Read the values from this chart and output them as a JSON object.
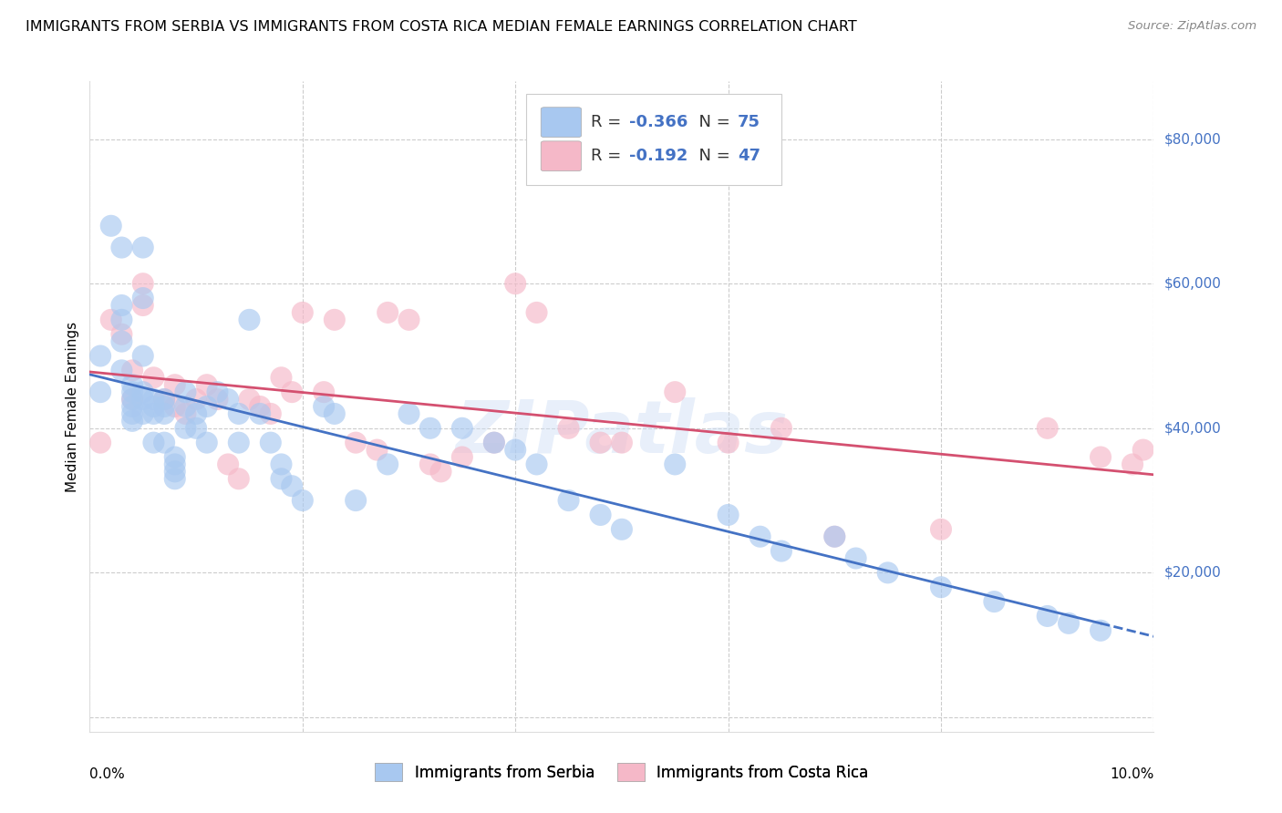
{
  "title": "IMMIGRANTS FROM SERBIA VS IMMIGRANTS FROM COSTA RICA MEDIAN FEMALE EARNINGS CORRELATION CHART",
  "source": "Source: ZipAtlas.com",
  "ylabel": "Median Female Earnings",
  "watermark": "ZIPatlas",
  "serbia_R": -0.366,
  "serbia_N": 75,
  "costarica_R": -0.192,
  "costarica_N": 47,
  "serbia_color": "#a8c8f0",
  "costarica_color": "#f5b8c8",
  "serbia_line_color": "#4472c4",
  "costarica_line_color": "#d45070",
  "background_color": "#ffffff",
  "grid_color": "#cccccc",
  "yticks": [
    0,
    20000,
    40000,
    60000,
    80000
  ],
  "ytick_labels": [
    "",
    "$20,000",
    "$40,000",
    "$60,000",
    "$80,000"
  ],
  "xlim": [
    0.0,
    0.1
  ],
  "ylim": [
    -2000,
    88000
  ],
  "serbia_x": [
    0.001,
    0.001,
    0.002,
    0.003,
    0.003,
    0.003,
    0.003,
    0.003,
    0.004,
    0.004,
    0.004,
    0.004,
    0.004,
    0.004,
    0.005,
    0.005,
    0.005,
    0.005,
    0.005,
    0.005,
    0.006,
    0.006,
    0.006,
    0.006,
    0.007,
    0.007,
    0.007,
    0.007,
    0.008,
    0.008,
    0.008,
    0.008,
    0.009,
    0.009,
    0.009,
    0.01,
    0.01,
    0.011,
    0.011,
    0.012,
    0.013,
    0.014,
    0.014,
    0.015,
    0.016,
    0.017,
    0.018,
    0.018,
    0.019,
    0.02,
    0.022,
    0.023,
    0.025,
    0.028,
    0.03,
    0.032,
    0.035,
    0.038,
    0.04,
    0.042,
    0.045,
    0.048,
    0.05,
    0.055,
    0.06,
    0.063,
    0.065,
    0.07,
    0.072,
    0.075,
    0.08,
    0.085,
    0.09,
    0.092,
    0.095
  ],
  "serbia_y": [
    45000,
    50000,
    68000,
    65000,
    57000,
    55000,
    52000,
    48000,
    46000,
    45000,
    44000,
    43000,
    42000,
    41000,
    65000,
    58000,
    50000,
    45000,
    44000,
    42000,
    44000,
    43000,
    42000,
    38000,
    44000,
    43000,
    42000,
    38000,
    36000,
    35000,
    34000,
    33000,
    45000,
    43000,
    40000,
    42000,
    40000,
    43000,
    38000,
    45000,
    44000,
    42000,
    38000,
    55000,
    42000,
    38000,
    35000,
    33000,
    32000,
    30000,
    43000,
    42000,
    30000,
    35000,
    42000,
    40000,
    40000,
    38000,
    37000,
    35000,
    30000,
    28000,
    26000,
    35000,
    28000,
    25000,
    23000,
    25000,
    22000,
    20000,
    18000,
    16000,
    14000,
    13000,
    12000
  ],
  "costarica_x": [
    0.001,
    0.002,
    0.003,
    0.004,
    0.004,
    0.005,
    0.005,
    0.006,
    0.007,
    0.008,
    0.008,
    0.009,
    0.01,
    0.011,
    0.012,
    0.013,
    0.014,
    0.015,
    0.016,
    0.017,
    0.018,
    0.019,
    0.02,
    0.022,
    0.023,
    0.025,
    0.027,
    0.028,
    0.03,
    0.032,
    0.033,
    0.035,
    0.038,
    0.04,
    0.042,
    0.045,
    0.048,
    0.05,
    0.055,
    0.06,
    0.065,
    0.07,
    0.08,
    0.09,
    0.095,
    0.098,
    0.099
  ],
  "costarica_y": [
    38000,
    55000,
    53000,
    48000,
    44000,
    60000,
    57000,
    47000,
    44000,
    46000,
    43000,
    42000,
    44000,
    46000,
    44000,
    35000,
    33000,
    44000,
    43000,
    42000,
    47000,
    45000,
    56000,
    45000,
    55000,
    38000,
    37000,
    56000,
    55000,
    35000,
    34000,
    36000,
    38000,
    60000,
    56000,
    40000,
    38000,
    38000,
    45000,
    38000,
    40000,
    25000,
    26000,
    40000,
    36000,
    35000,
    37000
  ],
  "legend_label_serbia": "Immigrants from Serbia",
  "legend_label_costarica": "Immigrants from Costa Rica",
  "title_fontsize": 11.5,
  "axis_label_fontsize": 11,
  "tick_fontsize": 11,
  "source_fontsize": 9.5
}
